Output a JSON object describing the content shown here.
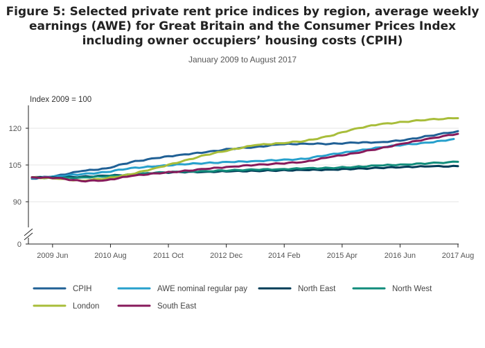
{
  "title": "Figure 5: Selected private rent price indices by region, average weekly earnings (AWE) for Great Britain and the Consumer Prices Index including owner occupiers’ housing costs (CPIH)",
  "subtitle": "January 2009 to August 2017",
  "chart_data": {
    "type": "line",
    "title": "Figure 5: Selected private rent price indices by region, average weekly earnings (AWE) for Great Britain and the Consumer Prices Index including owner occupiers’ housing costs (CPIH)",
    "subtitle": "January 2009 to August 2017",
    "ylabel": "Index 2009 = 100",
    "xlabel": "",
    "x_range": [
      "2009 Jan",
      "2017 Aug"
    ],
    "x_ticks": [
      "2009 Jun",
      "2010 Aug",
      "2011 Oct",
      "2012 Dec",
      "2014 Feb",
      "2015 Apr",
      "2016 Jun",
      "2017 Aug"
    ],
    "y_ticks": [
      0,
      90,
      105,
      120
    ],
    "y_axis_break": true,
    "ylim": [
      0,
      126
    ],
    "grid": "horizontal",
    "legend_position": "bottom",
    "series": [
      {
        "name": "CPIH",
        "color": "#206095",
        "points": [
          [
            "2009 Jan",
            99.4
          ],
          [
            "2009 Jul",
            100.6
          ],
          [
            "2010 Jan",
            102.5
          ],
          [
            "2010 Jul",
            103.6
          ],
          [
            "2011 Jan",
            106.2
          ],
          [
            "2011 Jul",
            107.8
          ],
          [
            "2012 Jan",
            109.2
          ],
          [
            "2012 Jul",
            110.2
          ],
          [
            "2013 Jan",
            111.6
          ],
          [
            "2013 Jul",
            112.3
          ],
          [
            "2014 Jan",
            113.4
          ],
          [
            "2014 Jul",
            113.7
          ],
          [
            "2015 Jan",
            113.6
          ],
          [
            "2015 Jul",
            114.1
          ],
          [
            "2016 Jan",
            114.3
          ],
          [
            "2016 Jul",
            115.1
          ],
          [
            "2017 Jan",
            116.9
          ],
          [
            "2017 Aug",
            118.8
          ]
        ]
      },
      {
        "name": "AWE nominal regular pay",
        "color": "#27A0CC",
        "points": [
          [
            "2009 Jan",
            99.7
          ],
          [
            "2009 Jul",
            100.4
          ],
          [
            "2010 Jan",
            101.2
          ],
          [
            "2010 Jul",
            102.1
          ],
          [
            "2011 Jan",
            103.8
          ],
          [
            "2011 Jul",
            104.4
          ],
          [
            "2012 Jan",
            105.3
          ],
          [
            "2012 Jul",
            105.8
          ],
          [
            "2013 Jan",
            106.2
          ],
          [
            "2013 Jul",
            106.6
          ],
          [
            "2014 Jan",
            107.0
          ],
          [
            "2014 Jul",
            107.5
          ],
          [
            "2015 Jan",
            109.3
          ],
          [
            "2015 Jul",
            110.6
          ],
          [
            "2016 Jan",
            112.2
          ],
          [
            "2016 Jul",
            113.3
          ],
          [
            "2017 Jan",
            114.1
          ],
          [
            "2017 Jul",
            115.6
          ]
        ]
      },
      {
        "name": "North East",
        "color": "#003C57",
        "points": [
          [
            "2009 Jan",
            100.0
          ],
          [
            "2009 Jul",
            99.8
          ],
          [
            "2010 Jan",
            100.2
          ],
          [
            "2010 Jul",
            100.6
          ],
          [
            "2011 Jan",
            101.1
          ],
          [
            "2011 Jul",
            101.8
          ],
          [
            "2012 Jan",
            102.1
          ],
          [
            "2012 Jul",
            102.2
          ],
          [
            "2013 Jan",
            102.4
          ],
          [
            "2013 Jul",
            102.6
          ],
          [
            "2014 Jan",
            102.8
          ],
          [
            "2014 Jul",
            102.9
          ],
          [
            "2015 Jan",
            103.1
          ],
          [
            "2015 Jul",
            103.4
          ],
          [
            "2016 Jan",
            103.8
          ],
          [
            "2016 Jul",
            104.2
          ],
          [
            "2017 Jan",
            104.4
          ],
          [
            "2017 Aug",
            104.5
          ]
        ]
      },
      {
        "name": "North West",
        "color": "#118C7B",
        "points": [
          [
            "2009 Jan",
            99.9
          ],
          [
            "2009 Jul",
            99.6
          ],
          [
            "2010 Jan",
            99.9
          ],
          [
            "2010 Jul",
            100.4
          ],
          [
            "2011 Jan",
            101.0
          ],
          [
            "2011 Jul",
            101.9
          ],
          [
            "2012 Jan",
            102.2
          ],
          [
            "2012 Jul",
            102.5
          ],
          [
            "2013 Jan",
            102.8
          ],
          [
            "2013 Jul",
            103.1
          ],
          [
            "2014 Jan",
            103.3
          ],
          [
            "2014 Jul",
            103.6
          ],
          [
            "2015 Jan",
            103.8
          ],
          [
            "2015 Jul",
            104.2
          ],
          [
            "2016 Jan",
            104.8
          ],
          [
            "2016 Jul",
            105.2
          ],
          [
            "2017 Jan",
            105.7
          ],
          [
            "2017 Aug",
            106.3
          ]
        ]
      },
      {
        "name": "London",
        "color": "#A8BD3A",
        "points": [
          [
            "2009 Jan",
            100.0
          ],
          [
            "2009 Jul",
            99.4
          ],
          [
            "2010 Jan",
            98.6
          ],
          [
            "2010 Jul",
            99.5
          ],
          [
            "2011 Jan",
            101.2
          ],
          [
            "2011 Jul",
            103.8
          ],
          [
            "2012 Jan",
            106.3
          ],
          [
            "2012 Jul",
            109.1
          ],
          [
            "2013 Jan",
            111.2
          ],
          [
            "2013 Jul",
            113.1
          ],
          [
            "2014 Jan",
            113.9
          ],
          [
            "2014 Jul",
            114.8
          ],
          [
            "2015 Jan",
            116.8
          ],
          [
            "2015 Jul",
            119.8
          ],
          [
            "2016 Jan",
            121.6
          ],
          [
            "2016 Jul",
            122.6
          ],
          [
            "2017 Jan",
            123.6
          ],
          [
            "2017 Aug",
            124.1
          ]
        ]
      },
      {
        "name": "South East",
        "color": "#871A5B",
        "points": [
          [
            "2009 Jan",
            100.0
          ],
          [
            "2009 Jul",
            99.7
          ],
          [
            "2010 Jan",
            98.4
          ],
          [
            "2010 Jul",
            98.8
          ],
          [
            "2011 Jan",
            100.5
          ],
          [
            "2011 Jul",
            101.6
          ],
          [
            "2012 Jan",
            102.4
          ],
          [
            "2012 Jul",
            103.4
          ],
          [
            "2013 Jan",
            104.3
          ],
          [
            "2013 Jul",
            105.0
          ],
          [
            "2014 Jan",
            105.6
          ],
          [
            "2014 Jul",
            106.3
          ],
          [
            "2015 Jan",
            108.2
          ],
          [
            "2015 Jul",
            109.8
          ],
          [
            "2016 Jan",
            111.7
          ],
          [
            "2016 Jul",
            113.8
          ],
          [
            "2017 Jan",
            115.8
          ],
          [
            "2017 Aug",
            117.7
          ]
        ]
      }
    ]
  }
}
